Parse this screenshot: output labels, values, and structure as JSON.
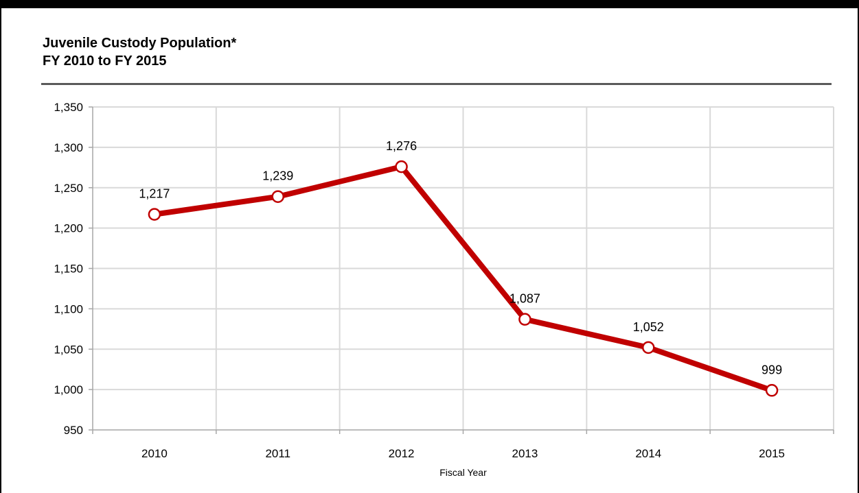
{
  "title_line1": "Juvenile Custody Population*",
  "title_line2": "FY 2010 to FY 2015",
  "chart_data": {
    "type": "line",
    "title": "Juvenile Custody Population* FY 2010 to FY 2015",
    "xlabel": "Fiscal Year",
    "ylabel": "",
    "categories": [
      "2010",
      "2011",
      "2012",
      "2013",
      "2014",
      "2015"
    ],
    "series": [
      {
        "values": [
          1217,
          1239,
          1276,
          1087,
          1052,
          999
        ],
        "data_labels": [
          "1,217",
          "1,239",
          "1,276",
          "1,087",
          "1,052",
          "999"
        ],
        "color": "#c00000"
      }
    ],
    "ylim": [
      950,
      1350
    ],
    "yticks": [
      950,
      1000,
      1050,
      1100,
      1150,
      1200,
      1250,
      1300,
      1350
    ],
    "ytick_labels": [
      "950",
      "1,000",
      "1,050",
      "1,100",
      "1,150",
      "1,200",
      "1,250",
      "1,300",
      "1,350"
    ],
    "grid": true,
    "legend": "none"
  },
  "colors": {
    "line": "#c00000",
    "grid": "#d9d9d9",
    "axis": "#a6a6a6",
    "rule": "#5a5a5a"
  }
}
